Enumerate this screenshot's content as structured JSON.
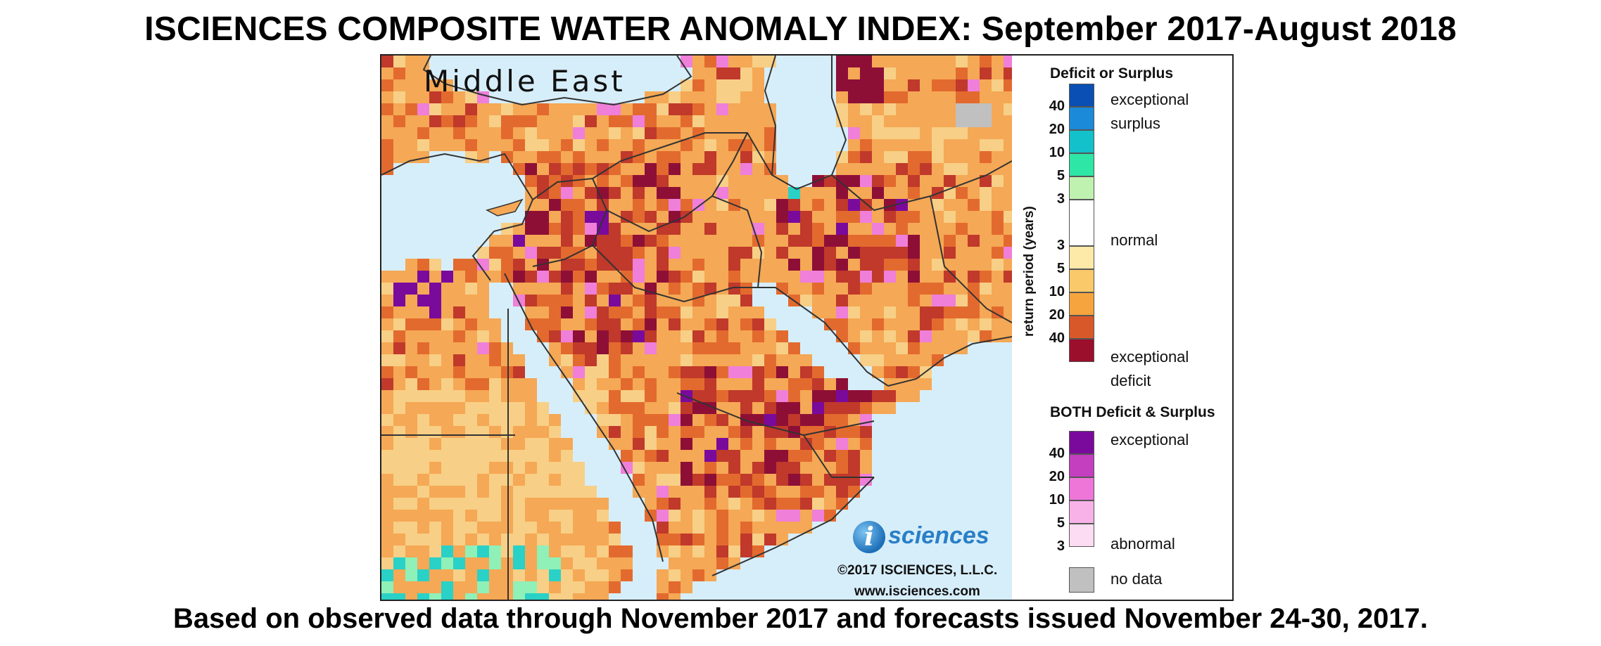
{
  "title": "ISCIENCES COMPOSITE WATER ANOMALY INDEX: September 2017-August 2018",
  "footer": "Based on observed data through November 2017 and forecasts issued November 24-30, 2017.",
  "map": {
    "region_label": "Middle East",
    "logo_letter": "i",
    "logo_text": "sciences",
    "copyright": "©2017 ISCIENCES, L.L.C.",
    "website": "www.isciences.com",
    "colors": {
      "water": "#d6eefa",
      "base_deficit": "#f5a855",
      "moderate_deficit": "#f8cf86",
      "severe_deficit": "#e36a2e",
      "extreme_deficit": "#c0392b",
      "exceptional_deficit": "#8e0f36",
      "both_exceptional": "#7a0a9c",
      "both_pink": "#ef7fd9",
      "surplus_cyan": "#2ad1c6",
      "surplus_green": "#8ff0b8",
      "normal": "#ffffff",
      "no_data": "#c0c0c0"
    }
  },
  "legend": {
    "deficit_surplus_heading": "Deficit or Surplus",
    "axis_title": "return period (years)",
    "surplus_label_line1": "exceptional",
    "surplus_label_line2": "surplus",
    "normal_label": "normal",
    "deficit_label_line1": "exceptional",
    "deficit_label_line2": "deficit",
    "surplus_numbers": [
      "40",
      "20",
      "10",
      "5",
      "3"
    ],
    "deficit_numbers": [
      "3",
      "5",
      "10",
      "20",
      "40"
    ],
    "surplus_colors": [
      "#0a4fb3",
      "#1b8ad9",
      "#12c1c9",
      "#2ee6a6",
      "#bff2b0"
    ],
    "normal_color": "#ffffff",
    "deficit_colors": [
      "#fde9a8",
      "#f9c96a",
      "#f5a43e",
      "#d9582a",
      "#9b0e2c"
    ],
    "both_heading": "BOTH Deficit & Surplus",
    "both_top_label": "exceptional",
    "both_bottom_label": "abnormal",
    "both_numbers": [
      "40",
      "20",
      "10",
      "5",
      "3"
    ],
    "both_colors": [
      "#7a0a9c",
      "#c43fc0",
      "#ee76d8",
      "#f8b2e8",
      "#fcdcf2"
    ],
    "no_data_label": "no data",
    "no_data_color": "#c0c0c0"
  }
}
